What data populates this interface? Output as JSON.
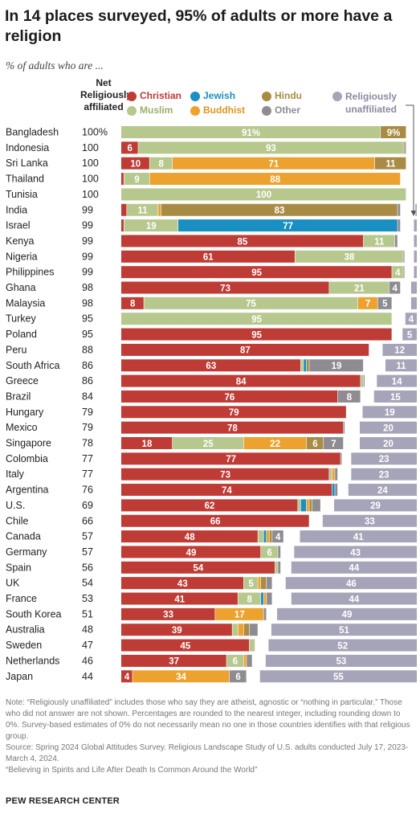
{
  "title": "In 14 places surveyed, 95% of adults or more have a religion",
  "subtitle": "% of adults who are ...",
  "net_header": "Net Religiously affiliated",
  "legend": {
    "christian": "Christian",
    "muslim": "Muslim",
    "jewish": "Jewish",
    "buddhist": "Buddhist",
    "hindu": "Hindu",
    "other": "Other",
    "unaffiliated": "Religiously unaffiliated"
  },
  "colors": {
    "christian": "#bf3b35",
    "muslim": "#b7c88e",
    "jewish": "#1a8fc1",
    "buddhist": "#eda22f",
    "hindu": "#a88b45",
    "other": "#8e8c91",
    "unaffiliated": "#a6a4b8"
  },
  "chart_data": {
    "type": "bar",
    "orientation": "horizontal",
    "stacked": true,
    "series_order": [
      "christian",
      "muslim",
      "jewish",
      "buddhist",
      "hindu",
      "other"
    ],
    "rows": [
      {
        "country": "Bangladesh",
        "net": "100%",
        "christian": 0,
        "muslim": 91,
        "jewish": 0,
        "buddhist": 0,
        "hindu": 9,
        "other": 0,
        "unaffiliated": 0
      },
      {
        "country": "Indonesia",
        "net": "100",
        "christian": 6,
        "muslim": 93,
        "jewish": 0,
        "buddhist": 0,
        "hindu": 0.5,
        "other": 0.5,
        "unaffiliated": 0
      },
      {
        "country": "Sri Lanka",
        "net": "100",
        "christian": 10,
        "muslim": 8,
        "jewish": 0,
        "buddhist": 71,
        "hindu": 11,
        "other": 0,
        "unaffiliated": 0
      },
      {
        "country": "Thailand",
        "net": "100",
        "christian": 1,
        "muslim": 9,
        "jewish": 0,
        "buddhist": 88,
        "hindu": 0,
        "other": 0,
        "unaffiliated": 0
      },
      {
        "country": "Tunisia",
        "net": "100",
        "christian": 0,
        "muslim": 100,
        "jewish": 0,
        "buddhist": 0,
        "hindu": 0,
        "other": 0,
        "unaffiliated": 0
      },
      {
        "country": "India",
        "net": "99",
        "christian": 2,
        "muslim": 11,
        "jewish": 0,
        "buddhist": 1,
        "hindu": 83,
        "other": 1,
        "unaffiliated": 0.5
      },
      {
        "country": "Israel",
        "net": "99",
        "christian": 1,
        "muslim": 19,
        "jewish": 77,
        "buddhist": 0,
        "hindu": 0,
        "other": 1,
        "unaffiliated": 1
      },
      {
        "country": "Kenya",
        "net": "99",
        "christian": 85,
        "muslim": 11,
        "jewish": 0,
        "buddhist": 0,
        "hindu": 0,
        "other": 1,
        "unaffiliated": 1
      },
      {
        "country": "Nigeria",
        "net": "99",
        "christian": 61,
        "muslim": 38,
        "jewish": 0,
        "buddhist": 0,
        "hindu": 0,
        "other": 0.5,
        "unaffiliated": 1
      },
      {
        "country": "Philippines",
        "net": "99",
        "christian": 95,
        "muslim": 4,
        "jewish": 0,
        "buddhist": 0,
        "hindu": 0,
        "other": 0.5,
        "unaffiliated": 1
      },
      {
        "country": "Ghana",
        "net": "98",
        "christian": 73,
        "muslim": 21,
        "jewish": 0,
        "buddhist": 0,
        "hindu": 0,
        "other": 4,
        "unaffiliated": 2
      },
      {
        "country": "Malaysia",
        "net": "98",
        "christian": 8,
        "muslim": 75,
        "jewish": 0,
        "buddhist": 7,
        "hindu": 0,
        "other": 5,
        "unaffiliated": 2
      },
      {
        "country": "Turkey",
        "net": "95",
        "christian": 0,
        "muslim": 95,
        "jewish": 0,
        "buddhist": 0,
        "hindu": 0,
        "other": 0,
        "unaffiliated": 4
      },
      {
        "country": "Poland",
        "net": "95",
        "christian": 95,
        "muslim": 0,
        "jewish": 0,
        "buddhist": 0,
        "hindu": 0,
        "other": 0,
        "unaffiliated": 5
      },
      {
        "country": "Peru",
        "net": "88",
        "christian": 87,
        "muslim": 0,
        "jewish": 0,
        "buddhist": 0,
        "hindu": 0,
        "other": 0,
        "unaffiliated": 12
      },
      {
        "country": "South Africa",
        "net": "86",
        "christian": 63,
        "muslim": 1,
        "jewish": 1,
        "buddhist": 0,
        "hindu": 1,
        "other": 19,
        "unaffiliated": 11
      },
      {
        "country": "Greece",
        "net": "86",
        "christian": 84,
        "muslim": 1,
        "jewish": 0,
        "buddhist": 0,
        "hindu": 0,
        "other": 0.5,
        "unaffiliated": 14
      },
      {
        "country": "Brazil",
        "net": "84",
        "christian": 76,
        "muslim": 0,
        "jewish": 0,
        "buddhist": 0,
        "hindu": 0,
        "other": 8,
        "unaffiliated": 15
      },
      {
        "country": "Hungary",
        "net": "79",
        "christian": 79,
        "muslim": 0,
        "jewish": 0,
        "buddhist": 0,
        "hindu": 0,
        "other": 0,
        "unaffiliated": 19
      },
      {
        "country": "Mexico",
        "net": "79",
        "christian": 78,
        "muslim": 0,
        "jewish": 0,
        "buddhist": 0,
        "hindu": 0,
        "other": 0.5,
        "unaffiliated": 20
      },
      {
        "country": "Singapore",
        "net": "78",
        "christian": 18,
        "muslim": 25,
        "jewish": 0,
        "buddhist": 22,
        "hindu": 6,
        "other": 7,
        "unaffiliated": 20
      },
      {
        "country": "Colombia",
        "net": "77",
        "christian": 77,
        "muslim": 0,
        "jewish": 0,
        "buddhist": 0,
        "hindu": 0,
        "other": 0.5,
        "unaffiliated": 23
      },
      {
        "country": "Italy",
        "net": "77",
        "christian": 73,
        "muslim": 1,
        "jewish": 0,
        "buddhist": 1,
        "hindu": 0,
        "other": 1,
        "unaffiliated": 23
      },
      {
        "country": "Argentina",
        "net": "76",
        "christian": 74,
        "muslim": 0,
        "jewish": 1,
        "buddhist": 0,
        "hindu": 0,
        "other": 1,
        "unaffiliated": 24
      },
      {
        "country": "U.S.",
        "net": "69",
        "christian": 62,
        "muslim": 1,
        "jewish": 2,
        "buddhist": 1,
        "hindu": 1,
        "other": 3,
        "unaffiliated": 29
      },
      {
        "country": "Chile",
        "net": "66",
        "christian": 66,
        "muslim": 0,
        "jewish": 0,
        "buddhist": 0,
        "hindu": 0,
        "other": 0,
        "unaffiliated": 33
      },
      {
        "country": "Canada",
        "net": "57",
        "christian": 48,
        "muslim": 2,
        "jewish": 1,
        "buddhist": 1,
        "hindu": 1,
        "other": 4,
        "unaffiliated": 41
      },
      {
        "country": "Germany",
        "net": "57",
        "christian": 49,
        "muslim": 6,
        "jewish": 0,
        "buddhist": 0,
        "hindu": 0,
        "other": 1,
        "unaffiliated": 43
      },
      {
        "country": "Spain",
        "net": "56",
        "christian": 54,
        "muslim": 1,
        "jewish": 0,
        "buddhist": 0,
        "hindu": 0,
        "other": 1,
        "unaffiliated": 44
      },
      {
        "country": "UK",
        "net": "54",
        "christian": 43,
        "muslim": 5,
        "jewish": 0,
        "buddhist": 1,
        "hindu": 2,
        "other": 2,
        "unaffiliated": 46
      },
      {
        "country": "France",
        "net": "53",
        "christian": 41,
        "muslim": 8,
        "jewish": 1,
        "buddhist": 1,
        "hindu": 0,
        "other": 2,
        "unaffiliated": 44
      },
      {
        "country": "South Korea",
        "net": "51",
        "christian": 33,
        "muslim": 0,
        "jewish": 0,
        "buddhist": 17,
        "hindu": 0,
        "other": 1,
        "unaffiliated": 49
      },
      {
        "country": "Australia",
        "net": "48",
        "christian": 39,
        "muslim": 2,
        "jewish": 0,
        "buddhist": 2,
        "hindu": 2,
        "other": 3,
        "unaffiliated": 51
      },
      {
        "country": "Sweden",
        "net": "47",
        "christian": 45,
        "muslim": 2,
        "jewish": 0,
        "buddhist": 0,
        "hindu": 0,
        "other": 0,
        "unaffiliated": 52
      },
      {
        "country": "Netherlands",
        "net": "46",
        "christian": 37,
        "muslim": 6,
        "jewish": 0,
        "buddhist": 1,
        "hindu": 0,
        "other": 2,
        "unaffiliated": 53
      },
      {
        "country": "Japan",
        "net": "44",
        "christian": 4,
        "muslim": 0,
        "jewish": 0,
        "buddhist": 34,
        "hindu": 0,
        "other": 6,
        "unaffiliated": 55
      }
    ]
  },
  "footer": {
    "note": "Note: “Religiously unaffiliated” includes those who say they are atheist, agnostic or “nothing in particular.” Those who did not answer are not shown. Percentages are rounded to the nearest integer, including rounding down to 0%. Survey-based estimates of 0% do not necessarily mean no one in those countries identifies with that religious group.",
    "source": "Source: Spring 2024 Global Attitudes Survey. Religious Landscape Study of U.S. adults conducted July 17, 2023-March 4, 2024.",
    "report": "“Believing in Spirits and Life After Death Is Common Around the World”",
    "brand": "PEW RESEARCH CENTER"
  }
}
